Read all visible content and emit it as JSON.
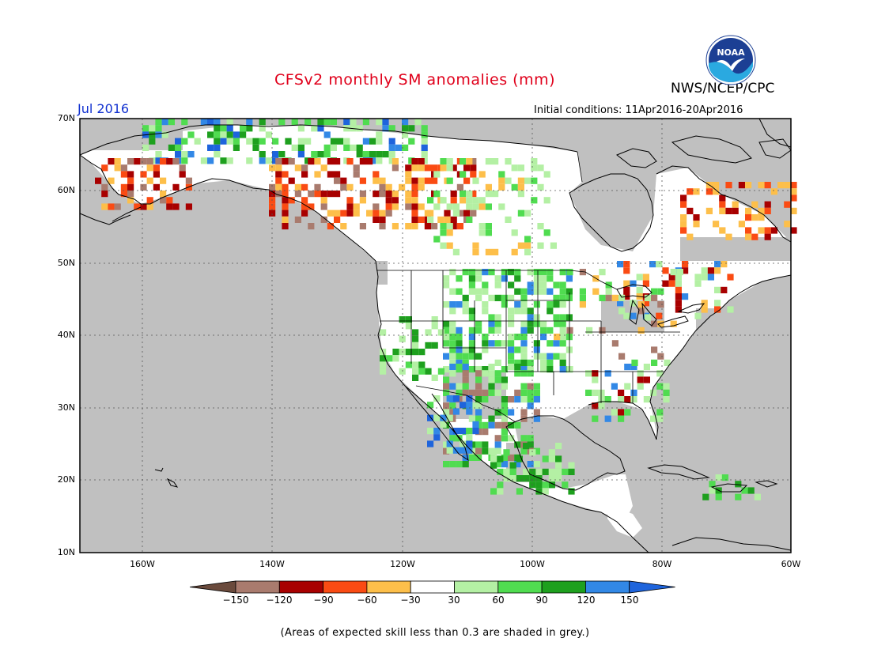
{
  "header": {
    "title": "CFSv2 monthly SM anomalies (mm)",
    "agency": "NWS/NCEP/CPC",
    "period": "Jul 2016",
    "initial_conditions": "Initial conditions: 11Apr2016-20Apr2016",
    "logo_text": "NOAA"
  },
  "axes": {
    "lat_labels": [
      "70N",
      "60N",
      "50N",
      "40N",
      "30N",
      "20N",
      "10N"
    ],
    "lon_labels": [
      "160W",
      "140W",
      "120W",
      "100W",
      "80W",
      "60W"
    ]
  },
  "colorbar": {
    "labels": [
      "−150",
      "−120",
      "−90",
      "−60",
      "−30",
      "30",
      "60",
      "90",
      "120",
      "150"
    ],
    "colors": [
      "#6a4a3c",
      "#a97b6e",
      "#a80000",
      "#fa4b13",
      "#fdbf4a",
      "#ffffff",
      "#b4f0a4",
      "#50dc50",
      "#1ea01e",
      "#3288e6",
      "#1e64dc"
    ]
  },
  "footnote": "(Areas of expected skill less than 0.3 are shaded in grey.)"
}
